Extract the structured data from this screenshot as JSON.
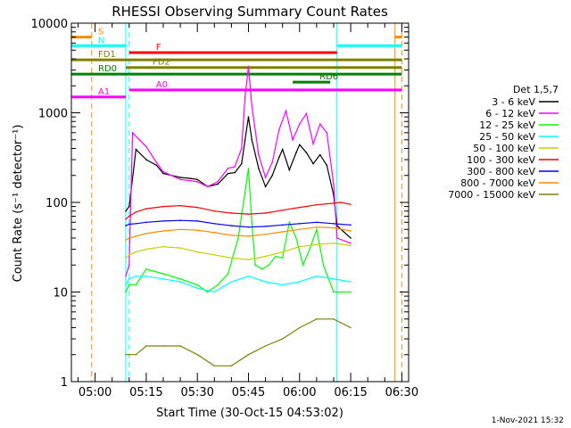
{
  "chart_data": {
    "type": "line",
    "title": "RHESSI Observing Summary Count Rates",
    "xlabel": "Start Time (30-Oct-15 04:53:02)",
    "ylabel": "Count Rate (s⁻¹ detector⁻¹)",
    "y_scale": "log",
    "ylim": [
      1,
      10000
    ],
    "xlim": [
      "04:53:02",
      "06:32:00"
    ],
    "x_ticks": [
      "05:00",
      "05:15",
      "05:30",
      "05:45",
      "06:00",
      "06:15",
      "06:30"
    ],
    "y_ticks": [
      "1",
      "10",
      "100",
      "1000",
      "10000"
    ],
    "footer": "1-Nov-2021 15:32",
    "legend_title": "Det 1,5,7",
    "legend_position": "right",
    "series": [
      {
        "name": "3 - 6 keV",
        "color": "#000000",
        "times": [
          "05:09",
          "05:10",
          "05:12",
          "05:15",
          "05:18",
          "05:20",
          "05:25",
          "05:28",
          "05:30",
          "05:33",
          "05:36",
          "05:39",
          "05:41",
          "05:43",
          "05:44",
          "05:45",
          "05:46",
          "05:48",
          "05:50",
          "05:52",
          "05:54",
          "05:55",
          "05:57",
          "05:59",
          "06:00",
          "06:02",
          "06:04",
          "06:06",
          "06:08",
          "06:10",
          "06:11",
          "06:15"
        ],
        "values": [
          80,
          90,
          390,
          300,
          260,
          210,
          190,
          185,
          180,
          150,
          160,
          210,
          215,
          270,
          500,
          900,
          500,
          240,
          150,
          200,
          320,
          390,
          230,
          360,
          440,
          360,
          270,
          340,
          260,
          120,
          55,
          40
        ]
      },
      {
        "name": "6 - 12 keV",
        "color": "#ff00ff",
        "times": [
          "05:09",
          "05:10",
          "05:11",
          "05:13",
          "05:15",
          "05:18",
          "05:20",
          "05:25",
          "05:28",
          "05:30",
          "05:33",
          "05:36",
          "05:39",
          "05:41",
          "05:43",
          "05:44",
          "05:45",
          "05:46",
          "05:48",
          "05:50",
          "05:52",
          "05:54",
          "05:56",
          "05:58",
          "06:00",
          "06:02",
          "06:04",
          "06:06",
          "06:08",
          "06:10",
          "06:11",
          "06:15"
        ],
        "values": [
          15,
          20,
          600,
          500,
          420,
          280,
          220,
          180,
          175,
          170,
          150,
          170,
          240,
          250,
          400,
          1500,
          3300,
          1200,
          340,
          190,
          280,
          650,
          1050,
          500,
          750,
          980,
          450,
          750,
          600,
          160,
          40,
          35
        ]
      },
      {
        "name": "12 - 25 keV",
        "color": "#00ff00",
        "times": [
          "05:09",
          "05:10",
          "05:12",
          "05:15",
          "05:20",
          "05:25",
          "05:30",
          "05:33",
          "05:36",
          "05:39",
          "05:42",
          "05:44",
          "05:45",
          "05:46",
          "05:47",
          "05:49",
          "05:51",
          "05:53",
          "05:55",
          "05:57",
          "05:59",
          "06:01",
          "06:03",
          "06:05",
          "06:07",
          "06:10",
          "06:15"
        ],
        "values": [
          10,
          12,
          12,
          18,
          16,
          14,
          12,
          10,
          12,
          16,
          40,
          130,
          240,
          60,
          20,
          18,
          20,
          25,
          24,
          60,
          40,
          20,
          30,
          50,
          20,
          10,
          10
        ]
      },
      {
        "name": "25 - 50 keV",
        "color": "#00ffff",
        "times": [
          "05:09",
          "05:10",
          "05:12",
          "05:15",
          "05:20",
          "05:25",
          "05:30",
          "05:35",
          "05:40",
          "05:45",
          "05:50",
          "05:55",
          "06:00",
          "06:05",
          "06:10",
          "06:15"
        ],
        "values": [
          12,
          14,
          15,
          15,
          14,
          13,
          11,
          10,
          13,
          15,
          13,
          12,
          13,
          15,
          14,
          13
        ]
      },
      {
        "name": "50 - 100 keV",
        "color": "#cccc00",
        "times": [
          "05:09",
          "05:10",
          "05:12",
          "05:15",
          "05:20",
          "05:25",
          "05:30",
          "05:35",
          "05:40",
          "05:45",
          "05:50",
          "05:55",
          "06:00",
          "06:05",
          "06:10",
          "06:15"
        ],
        "values": [
          24,
          26,
          28,
          30,
          32,
          31,
          28,
          26,
          24,
          23,
          25,
          28,
          32,
          34,
          35,
          33
        ]
      },
      {
        "name": "100 - 300 keV",
        "color": "#ff0000",
        "times": [
          "05:09",
          "05:10",
          "05:12",
          "05:15",
          "05:20",
          "05:25",
          "05:30",
          "05:35",
          "05:40",
          "05:45",
          "05:50",
          "05:55",
          "06:00",
          "06:05",
          "06:10",
          "06:12",
          "06:15"
        ],
        "values": [
          65,
          70,
          78,
          85,
          90,
          92,
          88,
          80,
          76,
          74,
          76,
          82,
          88,
          94,
          98,
          100,
          95
        ]
      },
      {
        "name": "300 - 800 keV",
        "color": "#0000ff",
        "times": [
          "05:09",
          "05:10",
          "05:12",
          "05:15",
          "05:20",
          "05:25",
          "05:30",
          "05:35",
          "05:40",
          "05:45",
          "05:50",
          "05:55",
          "06:00",
          "06:05",
          "06:10",
          "06:15"
        ],
        "values": [
          55,
          57,
          58,
          60,
          62,
          63,
          62,
          58,
          55,
          53,
          54,
          56,
          58,
          60,
          58,
          56
        ]
      },
      {
        "name": "800 - 7000 keV",
        "color": "#ff8c00",
        "times": [
          "05:09",
          "05:10",
          "05:12",
          "05:15",
          "05:20",
          "05:25",
          "05:30",
          "05:35",
          "05:40",
          "05:45",
          "05:50",
          "05:55",
          "06:00",
          "06:05",
          "06:10",
          "06:15"
        ],
        "values": [
          38,
          40,
          42,
          45,
          48,
          50,
          49,
          46,
          43,
          42,
          44,
          47,
          50,
          53,
          52,
          48
        ]
      },
      {
        "name": "7000 - 15000 keV",
        "color": "#808000",
        "times": [
          "05:09",
          "05:10",
          "05:12",
          "05:15",
          "05:20",
          "05:25",
          "05:30",
          "05:35",
          "05:40",
          "05:45",
          "05:50",
          "05:55",
          "06:00",
          "06:05",
          "06:10",
          "06:15"
        ],
        "values": [
          2,
          2,
          2,
          2.5,
          2.5,
          2.5,
          2,
          1.5,
          1.5,
          2,
          2.5,
          3,
          4,
          5,
          5,
          4
        ]
      }
    ],
    "flag_bars": [
      {
        "label": "S",
        "color": "#ff8c00",
        "y": 7000,
        "spans": [
          [
            "04:53:02",
            "04:59"
          ],
          [
            "06:28",
            "06:30"
          ]
        ]
      },
      {
        "label": "N",
        "color": "#00ffff",
        "y": 5600,
        "spans": [
          [
            "04:53:02",
            "05:09"
          ],
          [
            "06:11",
            "06:30"
          ]
        ]
      },
      {
        "label": "F",
        "color": "#ff0000",
        "y": 4700,
        "spans": [
          [
            "05:10",
            "06:11"
          ]
        ]
      },
      {
        "label": "FD1",
        "color": "#808000",
        "y": 3900,
        "spans": [
          [
            "04:53:02",
            "06:30"
          ]
        ]
      },
      {
        "label": "FD2",
        "color": "#808000",
        "y": 3200,
        "spans": [
          [
            "05:09",
            "06:30"
          ]
        ]
      },
      {
        "label": "RD0",
        "color": "#008000",
        "y": 2700,
        "spans": [
          [
            "04:53:02",
            "06:30"
          ]
        ]
      },
      {
        "label": "RD6",
        "color": "#008000",
        "y": 2200,
        "spans": [
          [
            "05:58",
            "06:09"
          ]
        ]
      },
      {
        "label": "A0",
        "color": "#ff00ff",
        "y": 1800,
        "spans": [
          [
            "05:10",
            "06:30"
          ]
        ]
      },
      {
        "label": "A1",
        "color": "#ff00ff",
        "y": 1500,
        "spans": [
          [
            "04:53:02",
            "05:09"
          ]
        ]
      }
    ],
    "vertical_markers": [
      {
        "time": "04:53:02",
        "color": "#00ffff",
        "style": "solid"
      },
      {
        "time": "04:59",
        "color": "#ff8c00",
        "style": "dashed"
      },
      {
        "time": "05:09",
        "color": "#00ffff",
        "style": "solid"
      },
      {
        "time": "05:10",
        "color": "#00ffff",
        "style": "dashed"
      },
      {
        "time": "06:11",
        "color": "#00ffff",
        "style": "solid"
      },
      {
        "time": "06:28",
        "color": "#ff8c00",
        "style": "solid"
      },
      {
        "time": "06:30",
        "color": "#ff8c00",
        "style": "dashed"
      }
    ]
  }
}
